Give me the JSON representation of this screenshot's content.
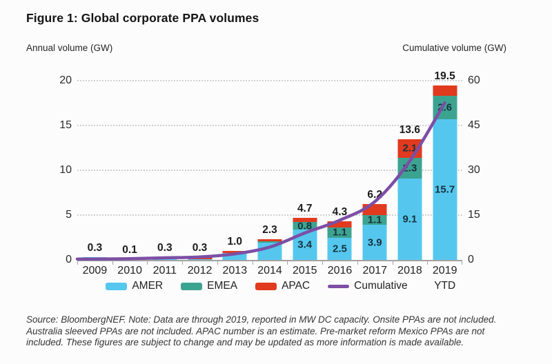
{
  "figure": {
    "title": "Figure 1: Global corporate PPA volumes",
    "left_axis_title": "Annual volume (GW)",
    "right_axis_title": "Cumulative volume (GW)",
    "source_note": "Source: BloombergNEF. Note: Data are through 2019, reported in MW DC capacity. Onsite PPAs are not included. Australia sleeved PPAs are not included. APAC number is an estimate. Pre-market reform Mexico PPAs are not included. These figures are subject to change and may be updated as more information is made available."
  },
  "colors": {
    "amer": "#55C7EE",
    "emea": "#3DA391",
    "apac": "#E13A1E",
    "cumulative": "#7C4FA6",
    "grid": "#CFCFCF",
    "axis": "#A3A3A3",
    "segment_label": "#16323E",
    "total_label": "#1B1B1B"
  },
  "chart_data": {
    "type": "bar",
    "subtype": "stacked-bar-with-cumulative-line",
    "title": "Figure 1: Global corporate PPA volumes",
    "categories": [
      "2009",
      "2010",
      "2011",
      "2012",
      "2013",
      "2014",
      "2015",
      "2016",
      "2017",
      "2018",
      "2019"
    ],
    "last_category_sublabel": "YTD",
    "totals": [
      0.3,
      0.1,
      0.3,
      0.3,
      1.0,
      2.3,
      4.7,
      4.3,
      6.2,
      13.6,
      19.5
    ],
    "total_labels": [
      "0.3",
      "0.1",
      "0.3",
      "0.3",
      "1.0",
      "2.3",
      "4.7",
      "4.3",
      "6.2",
      "13.6",
      "19.5"
    ],
    "series": [
      {
        "name": "AMER",
        "color_key": "amer",
        "values": [
          0.3,
          0.1,
          0.3,
          0.05,
          0.8,
          1.9,
          3.4,
          2.5,
          3.9,
          9.1,
          15.7
        ],
        "labels": [
          null,
          null,
          null,
          null,
          null,
          null,
          "3.4",
          "2.5",
          "3.9",
          "9.1",
          "15.7"
        ]
      },
      {
        "name": "EMEA",
        "color_key": "emea",
        "values": [
          0,
          0,
          0,
          0,
          0,
          0.2,
          0.8,
          1.1,
          1.1,
          2.3,
          2.6
        ],
        "labels": [
          null,
          null,
          null,
          null,
          null,
          null,
          "0.8",
          "1.1",
          "1.1",
          "2.3",
          "2.6"
        ]
      },
      {
        "name": "APAC",
        "color_key": "apac",
        "values": [
          0,
          0,
          0,
          0.25,
          0.2,
          0.2,
          0.5,
          0.7,
          1.2,
          2.1,
          1.2
        ],
        "labels": [
          null,
          null,
          null,
          null,
          null,
          null,
          null,
          null,
          null,
          "2.1",
          null
        ]
      }
    ],
    "line": {
      "name": "Cumulative",
      "color_key": "cumulative",
      "values": [
        0.3,
        0.4,
        0.7,
        1.0,
        2.0,
        4.3,
        9.0,
        13.3,
        19.5,
        33.1,
        52.6
      ]
    },
    "left_axis": {
      "label": "Annual volume (GW)",
      "ticks": [
        0,
        5,
        10,
        15,
        20
      ],
      "max": 20
    },
    "right_axis": {
      "label": "Cumulative volume (GW)",
      "ticks": [
        0,
        15,
        30,
        45,
        60
      ],
      "max": 60
    },
    "grid": "dotted-horizontal",
    "legend_position": "bottom",
    "legend": [
      {
        "label": "AMER",
        "swatch": "amer",
        "shape": "rect"
      },
      {
        "label": "EMEA",
        "swatch": "emea",
        "shape": "rect"
      },
      {
        "label": "APAC",
        "swatch": "apac",
        "shape": "rect"
      },
      {
        "label": "Cumulative",
        "swatch": "cumulative",
        "shape": "line"
      }
    ]
  }
}
